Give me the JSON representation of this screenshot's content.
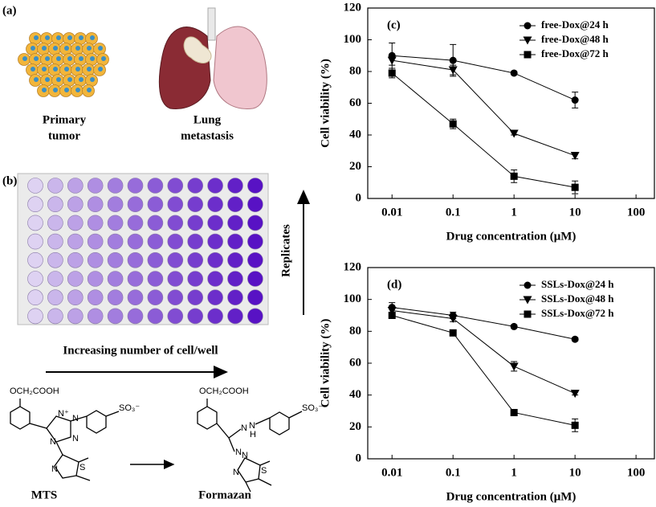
{
  "panels": {
    "a": {
      "label": "(a)",
      "tumor_caption": [
        "Primary",
        "tumor"
      ],
      "lung_caption": [
        "Lung",
        "metastasis"
      ]
    },
    "b": {
      "label": "(b)",
      "replicates": "Replicates",
      "increasing": "Increasing number of cell/well"
    }
  },
  "chemistry": {
    "mts": {
      "name": "MTS",
      "substituent": "OCH₂COOH",
      "sulfonate": "SO₃⁻",
      "atoms": [
        "N",
        "N",
        "N",
        "N⁺",
        "N",
        "S"
      ]
    },
    "formazan": {
      "name": "Formazan",
      "substituent": "OCH₂COOH",
      "sulfonate": "SO₃⁻",
      "atoms": [
        "N",
        "N",
        "N",
        "H",
        "N",
        "N",
        "S"
      ]
    }
  },
  "chart_data": [
    {
      "type": "line",
      "panel_label": "(c)",
      "xlabel": "Drug concentration (μM)",
      "ylabel": "Cell viability (%)",
      "log_x": true,
      "grid": false,
      "legend": "upper right",
      "x": [
        0.01,
        0.1,
        1,
        10
      ],
      "xlim": [
        0.004,
        200
      ],
      "xticks": [
        0.01,
        0.1,
        1,
        10,
        100
      ],
      "ylim": [
        0,
        120
      ],
      "yticks": [
        0,
        20,
        40,
        60,
        80,
        100,
        120
      ],
      "series": [
        {
          "name": "free-Dox@24 h",
          "color": "#000000",
          "marker": "circle",
          "values": [
            90,
            87,
            79,
            62
          ],
          "errors": [
            8,
            10,
            1,
            5
          ]
        },
        {
          "name": "free-Dox@48 h",
          "color": "#000000",
          "marker": "triangle-down",
          "values": [
            87,
            81,
            41,
            27
          ],
          "errors": [
            3,
            3,
            1,
            2
          ]
        },
        {
          "name": "free-Dox@72 h",
          "color": "#000000",
          "marker": "square",
          "values": [
            79,
            47,
            14,
            7
          ],
          "errors": [
            3,
            3,
            4,
            4
          ]
        }
      ]
    },
    {
      "type": "line",
      "panel_label": "(d)",
      "xlabel": "Drug concentration (μM)",
      "ylabel": "Cell viability (%)",
      "log_x": true,
      "grid": false,
      "legend": "upper right",
      "x": [
        0.01,
        0.1,
        1,
        10
      ],
      "xlim": [
        0.004,
        200
      ],
      "xticks": [
        0.01,
        0.1,
        1,
        10,
        100
      ],
      "ylim": [
        0,
        120
      ],
      "yticks": [
        0,
        20,
        40,
        60,
        80,
        100,
        120
      ],
      "series": [
        {
          "name": "SSLs-Dox@24 h",
          "color": "#000000",
          "marker": "circle",
          "values": [
            95,
            90,
            83,
            75
          ],
          "errors": [
            3,
            2,
            1,
            1
          ]
        },
        {
          "name": "SSLs-Dox@48 h",
          "color": "#000000",
          "marker": "triangle-down",
          "values": [
            93,
            88,
            58,
            41
          ],
          "errors": [
            2,
            2,
            3,
            1
          ]
        },
        {
          "name": "SSLs-Dox@72 h",
          "color": "#000000",
          "marker": "square",
          "values": [
            90,
            79,
            29,
            21
          ],
          "errors": [
            2,
            1,
            1,
            4
          ]
        }
      ]
    }
  ]
}
